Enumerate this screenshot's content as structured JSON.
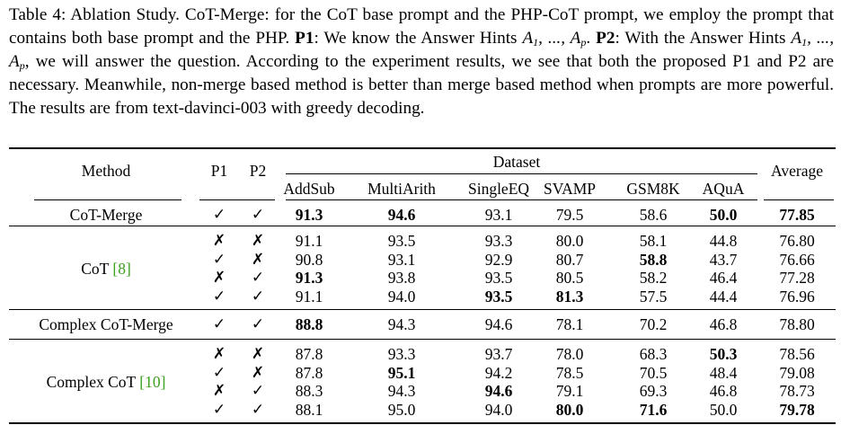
{
  "caption": {
    "lead": "Table 4: Ablation Study. CoT-Merge: for the CoT base prompt and the PHP-CoT prompt, we employ the prompt that contains both base prompt and the PHP.",
    "p1_label": "P1",
    "p1_text_pre": ": We know the Answer Hints",
    "p1_text_post": ".",
    "p2_label": "P2",
    "p2_text_pre": ": With the Answer Hints",
    "p2_text_post": ", we will answer the question. According to the experiment results, we see that both the proposed P1 and P2 are necessary. Meanwhile, non-merge based method is better than merge based method when prompts are more powerful. The results are from text-davinci-003 with greedy decoding.",
    "math_hints": "A1, ..., Ap"
  },
  "header": {
    "method": "Method",
    "p1": "P1",
    "p2": "P2",
    "dataset": "Dataset",
    "average": "Average",
    "datasets": [
      "AddSub",
      "MultiArith",
      "SingleEQ",
      "SVAMP",
      "GSM8K",
      "AQuA"
    ]
  },
  "groups": [
    {
      "method": "CoT-Merge",
      "cite": "",
      "rows": [
        {
          "p1": "✓",
          "p2": "✓",
          "v": [
            "91.3",
            "94.6",
            "93.1",
            "79.5",
            "58.6",
            "50.0"
          ],
          "avg": "77.85",
          "bold": [
            0,
            1,
            5
          ],
          "avg_bold": true
        }
      ]
    },
    {
      "method": "CoT",
      "cite": "[8]",
      "rows": [
        {
          "p1": "✗",
          "p2": "✗",
          "v": [
            "91.1",
            "93.5",
            "93.3",
            "80.0",
            "58.1",
            "44.8"
          ],
          "avg": "76.80",
          "bold": [],
          "avg_bold": false
        },
        {
          "p1": "✓",
          "p2": "✗",
          "v": [
            "90.8",
            "93.1",
            "92.9",
            "80.7",
            "58.8",
            "43.7"
          ],
          "avg": "76.66",
          "bold": [
            4
          ],
          "avg_bold": false
        },
        {
          "p1": "✗",
          "p2": "✓",
          "v": [
            "91.3",
            "93.8",
            "93.5",
            "80.5",
            "58.2",
            "46.4"
          ],
          "avg": "77.28",
          "bold": [
            0
          ],
          "avg_bold": false
        },
        {
          "p1": "✓",
          "p2": "✓",
          "v": [
            "91.1",
            "94.0",
            "93.5",
            "81.3",
            "57.5",
            "44.4"
          ],
          "avg": "76.96",
          "bold": [
            2,
            3
          ],
          "avg_bold": false
        }
      ]
    },
    {
      "method": "Complex CoT-Merge",
      "cite": "",
      "rows": [
        {
          "p1": "✓",
          "p2": "✓",
          "v": [
            "88.8",
            "94.3",
            "94.6",
            "78.1",
            "70.2",
            "46.8"
          ],
          "avg": "78.80",
          "bold": [
            0
          ],
          "avg_bold": false
        }
      ]
    },
    {
      "method": "Complex CoT",
      "cite": "[10]",
      "rows": [
        {
          "p1": "✗",
          "p2": "✗",
          "v": [
            "87.8",
            "93.3",
            "93.7",
            "78.0",
            "68.3",
            "50.3"
          ],
          "avg": "78.56",
          "bold": [
            5
          ],
          "avg_bold": false
        },
        {
          "p1": "✓",
          "p2": "✗",
          "v": [
            "87.8",
            "95.1",
            "94.2",
            "78.5",
            "70.5",
            "48.4"
          ],
          "avg": "79.08",
          "bold": [
            1
          ],
          "avg_bold": false
        },
        {
          "p1": "✗",
          "p2": "✓",
          "v": [
            "88.3",
            "94.3",
            "94.6",
            "79.1",
            "69.3",
            "46.8"
          ],
          "avg": "78.73",
          "bold": [
            2
          ],
          "avg_bold": false
        },
        {
          "p1": "✓",
          "p2": "✓",
          "v": [
            "88.1",
            "95.0",
            "94.0",
            "80.0",
            "71.6",
            "50.0"
          ],
          "avg": "79.78",
          "bold": [
            3,
            4
          ],
          "avg_bold": true
        }
      ]
    }
  ]
}
